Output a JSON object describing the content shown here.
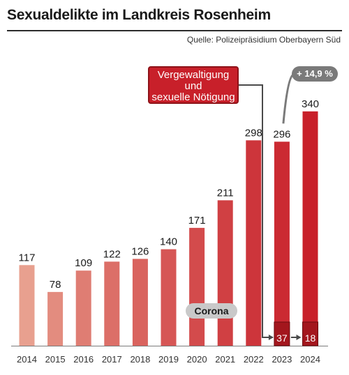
{
  "title": "Sexualdelikte im Landkreis Rosenheim",
  "source": "Quelle: Polizeipräsidium Oberbayern Süd",
  "callout": {
    "line1": "Vergewaltigung",
    "line2": "und",
    "line3": "sexuelle Nötigung"
  },
  "pct_change_label": "+ 14,9 %",
  "corona_label": "Corona",
  "colors": {
    "bar_early": "#e8a08f",
    "bar_late": "#c8202a",
    "inset_bar": "#a3161d",
    "callout": "#c8202a",
    "badge_grey": "#7a7a7a",
    "corona_badge": "#c9c9c9"
  },
  "chart_data": {
    "type": "bar",
    "title": "Sexualdelikte im Landkreis Rosenheim",
    "xlabel": "",
    "ylabel": "",
    "categories": [
      "2014",
      "2015",
      "2016",
      "2017",
      "2018",
      "2019",
      "2020",
      "2021",
      "2022",
      "2023",
      "2024"
    ],
    "series": [
      {
        "values": [
          117,
          78,
          109,
          122,
          126,
          140,
          171,
          211,
          298,
          296,
          340
        ]
      },
      {
        "name": "Vergewaltigung und sexuelle Nötigung",
        "values": [
          null,
          null,
          null,
          null,
          null,
          null,
          null,
          null,
          null,
          37,
          18
        ]
      }
    ],
    "ylim": [
      0,
      360
    ],
    "grid": false,
    "annotations": [
      "+ 14,9 %",
      "Corona"
    ]
  }
}
